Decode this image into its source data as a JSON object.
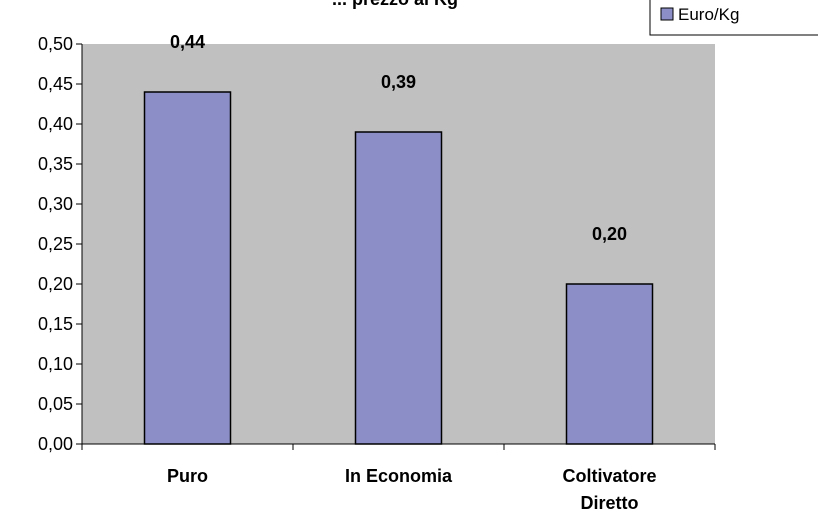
{
  "chart_data": {
    "type": "bar",
    "title": "... prezzo al Kg",
    "categories": [
      [
        "Puro"
      ],
      [
        "In Economia"
      ],
      [
        "Coltivatore",
        "Diretto"
      ]
    ],
    "values": [
      0.44,
      0.39,
      0.2
    ],
    "data_labels": [
      "0,44",
      "0,39",
      "0,20"
    ],
    "ylim": [
      0,
      0.5
    ],
    "yticks": [
      0,
      0.05,
      0.1,
      0.15,
      0.2,
      0.25,
      0.3,
      0.35,
      0.4,
      0.45,
      0.5
    ],
    "ytick_labels": [
      "0,00",
      "0,05",
      "0,10",
      "0,15",
      "0,20",
      "0,25",
      "0,30",
      "0,35",
      "0,40",
      "0,45",
      "0,50"
    ],
    "xlabel": "",
    "ylabel": "",
    "grid": false,
    "legend": {
      "entries": [
        "Euro/Kg"
      ],
      "placement": "top-right"
    },
    "series": [
      {
        "name": "Euro/Kg",
        "values": [
          0.44,
          0.39,
          0.2
        ]
      }
    ]
  },
  "colors": {
    "plot_background": "#c0c0c0",
    "bar_fill": "#8c8fc7",
    "bar_stroke": "#000000",
    "axis": "#000000"
  }
}
